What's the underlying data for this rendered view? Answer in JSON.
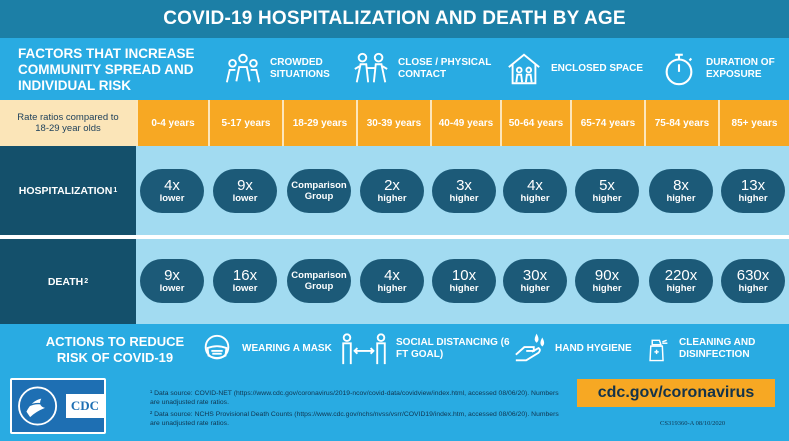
{
  "title": "COVID-19 HOSPITALIZATION AND DEATH BY AGE",
  "factors": {
    "title": "FACTORS THAT INCREASE COMMUNITY SPREAD AND INDIVIDUAL RISK",
    "items": [
      {
        "label": "CROWDED SITUATIONS",
        "icon": "crowd-icon"
      },
      {
        "label": "CLOSE / PHYSICAL CONTACT",
        "icon": "physical-contact-icon"
      },
      {
        "label": "ENCLOSED SPACE",
        "icon": "enclosed-space-icon"
      },
      {
        "label": "DURATION OF EXPOSURE",
        "icon": "stopwatch-icon"
      }
    ]
  },
  "ages": {
    "label": "Rate ratios compared to 18-29 year olds",
    "groups": [
      "0-4 years",
      "5-17 years",
      "18-29 years",
      "30-39 years",
      "40-49 years",
      "50-64 years",
      "65-74 years",
      "75-84 years",
      "85+ years"
    ]
  },
  "hospitalization": {
    "label": "HOSPITALIZATION",
    "footnote_mark": "1",
    "cells": [
      {
        "value": "4x",
        "dir": "lower"
      },
      {
        "value": "9x",
        "dir": "lower"
      },
      {
        "value": "Comparison",
        "dir": "Group"
      },
      {
        "value": "2x",
        "dir": "higher"
      },
      {
        "value": "3x",
        "dir": "higher"
      },
      {
        "value": "4x",
        "dir": "higher"
      },
      {
        "value": "5x",
        "dir": "higher"
      },
      {
        "value": "8x",
        "dir": "higher"
      },
      {
        "value": "13x",
        "dir": "higher"
      }
    ]
  },
  "death": {
    "label": "DEATH",
    "footnote_mark": "2",
    "cells": [
      {
        "value": "9x",
        "dir": "lower"
      },
      {
        "value": "16x",
        "dir": "lower"
      },
      {
        "value": "Comparison",
        "dir": "Group"
      },
      {
        "value": "4x",
        "dir": "higher"
      },
      {
        "value": "10x",
        "dir": "higher"
      },
      {
        "value": "30x",
        "dir": "higher"
      },
      {
        "value": "90x",
        "dir": "higher"
      },
      {
        "value": "220x",
        "dir": "higher"
      },
      {
        "value": "630x",
        "dir": "higher"
      }
    ]
  },
  "actions": {
    "title": "ACTIONS TO REDUCE RISK OF COVID-19",
    "items": [
      {
        "label": "WEARING A MASK",
        "icon": "mask-icon"
      },
      {
        "label": "SOCIAL DISTANCING (6 FT GOAL)",
        "icon": "social-distancing-icon"
      },
      {
        "label": "HAND HYGIENE",
        "icon": "hand-hygiene-icon"
      },
      {
        "label": "CLEANING AND DISINFECTION",
        "icon": "spray-bottle-icon"
      }
    ]
  },
  "footer": {
    "logo_text": "CDC",
    "note1": "¹ Data source: COVID-NET (https://www.cdc.gov/coronavirus/2019-ncov/covid-data/covidview/index.html, accessed 08/06/20). Numbers are unadjusted rate ratios.",
    "note2": "² Data source: NCHS Provisional Death Counts (https://www.cdc.gov/nchs/nvss/vsrr/COVID19/index.htm, accessed 08/06/20). Numbers are unadjusted rate ratios.",
    "url": "cdc.gov/coronavirus",
    "code": "CS319360-A 08/10/2020"
  },
  "colors": {
    "header": "#1c7fa6",
    "background": "#29abe2",
    "age_header": "#f7a823",
    "row_bg": "#a2dbf1",
    "row_label": "#14506b",
    "pill": "#1c5a78"
  }
}
